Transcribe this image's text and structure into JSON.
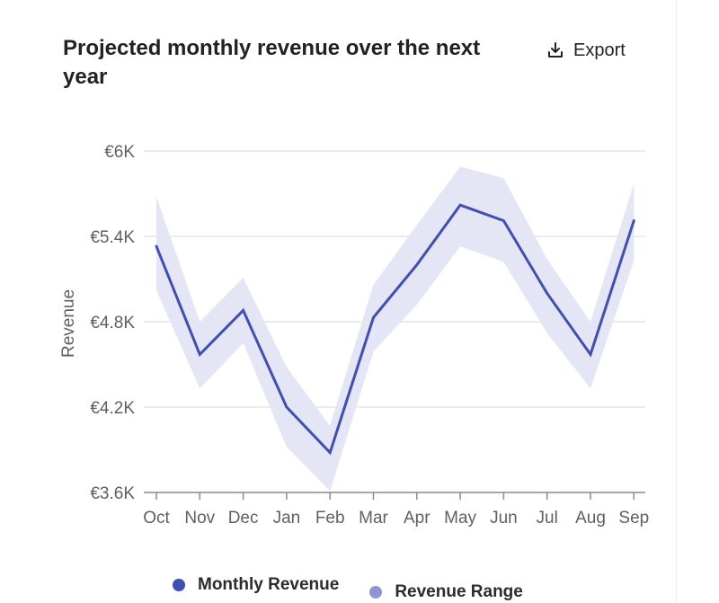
{
  "header": {
    "title": "Projected monthly revenue over the next year",
    "export_label": "Export"
  },
  "legend": {
    "monthly_label": "Monthly Revenue",
    "range_label": "Revenue Range"
  },
  "colors": {
    "line": "#3f4fb3",
    "band": "#e4e6f6",
    "range_swatch": "#8c96d6",
    "grid": "#d9d9de",
    "axis": "#8a8a90"
  },
  "chart_data": {
    "type": "line",
    "title": "Projected monthly revenue over the next year",
    "xlabel": "",
    "ylabel": "Revenue",
    "categories": [
      "Oct",
      "Nov",
      "Dec",
      "Jan",
      "Feb",
      "Mar",
      "Apr",
      "May",
      "Jun",
      "Jul",
      "Aug",
      "Sep"
    ],
    "ylim": [
      3600,
      6000
    ],
    "yticks": [
      3600,
      4200,
      4800,
      5400,
      6000
    ],
    "ytick_labels": [
      "€3.6K",
      "€4.2K",
      "€4.8K",
      "€5.4K",
      "€6K"
    ],
    "grid": true,
    "legend_position": "bottom",
    "series": [
      {
        "name": "Monthly Revenue",
        "values": [
          5330,
          4570,
          4880,
          4200,
          3880,
          4830,
          5200,
          5620,
          5510,
          5000,
          4570,
          5510
        ]
      }
    ],
    "range": {
      "name": "Revenue Range",
      "upper": [
        5680,
        4800,
        5110,
        4480,
        4070,
        5060,
        5480,
        5890,
        5810,
        5240,
        4800,
        5770
      ],
      "lower": [
        5020,
        4330,
        4650,
        3920,
        3610,
        4590,
        4920,
        5330,
        5220,
        4720,
        4330,
        5230
      ]
    }
  }
}
